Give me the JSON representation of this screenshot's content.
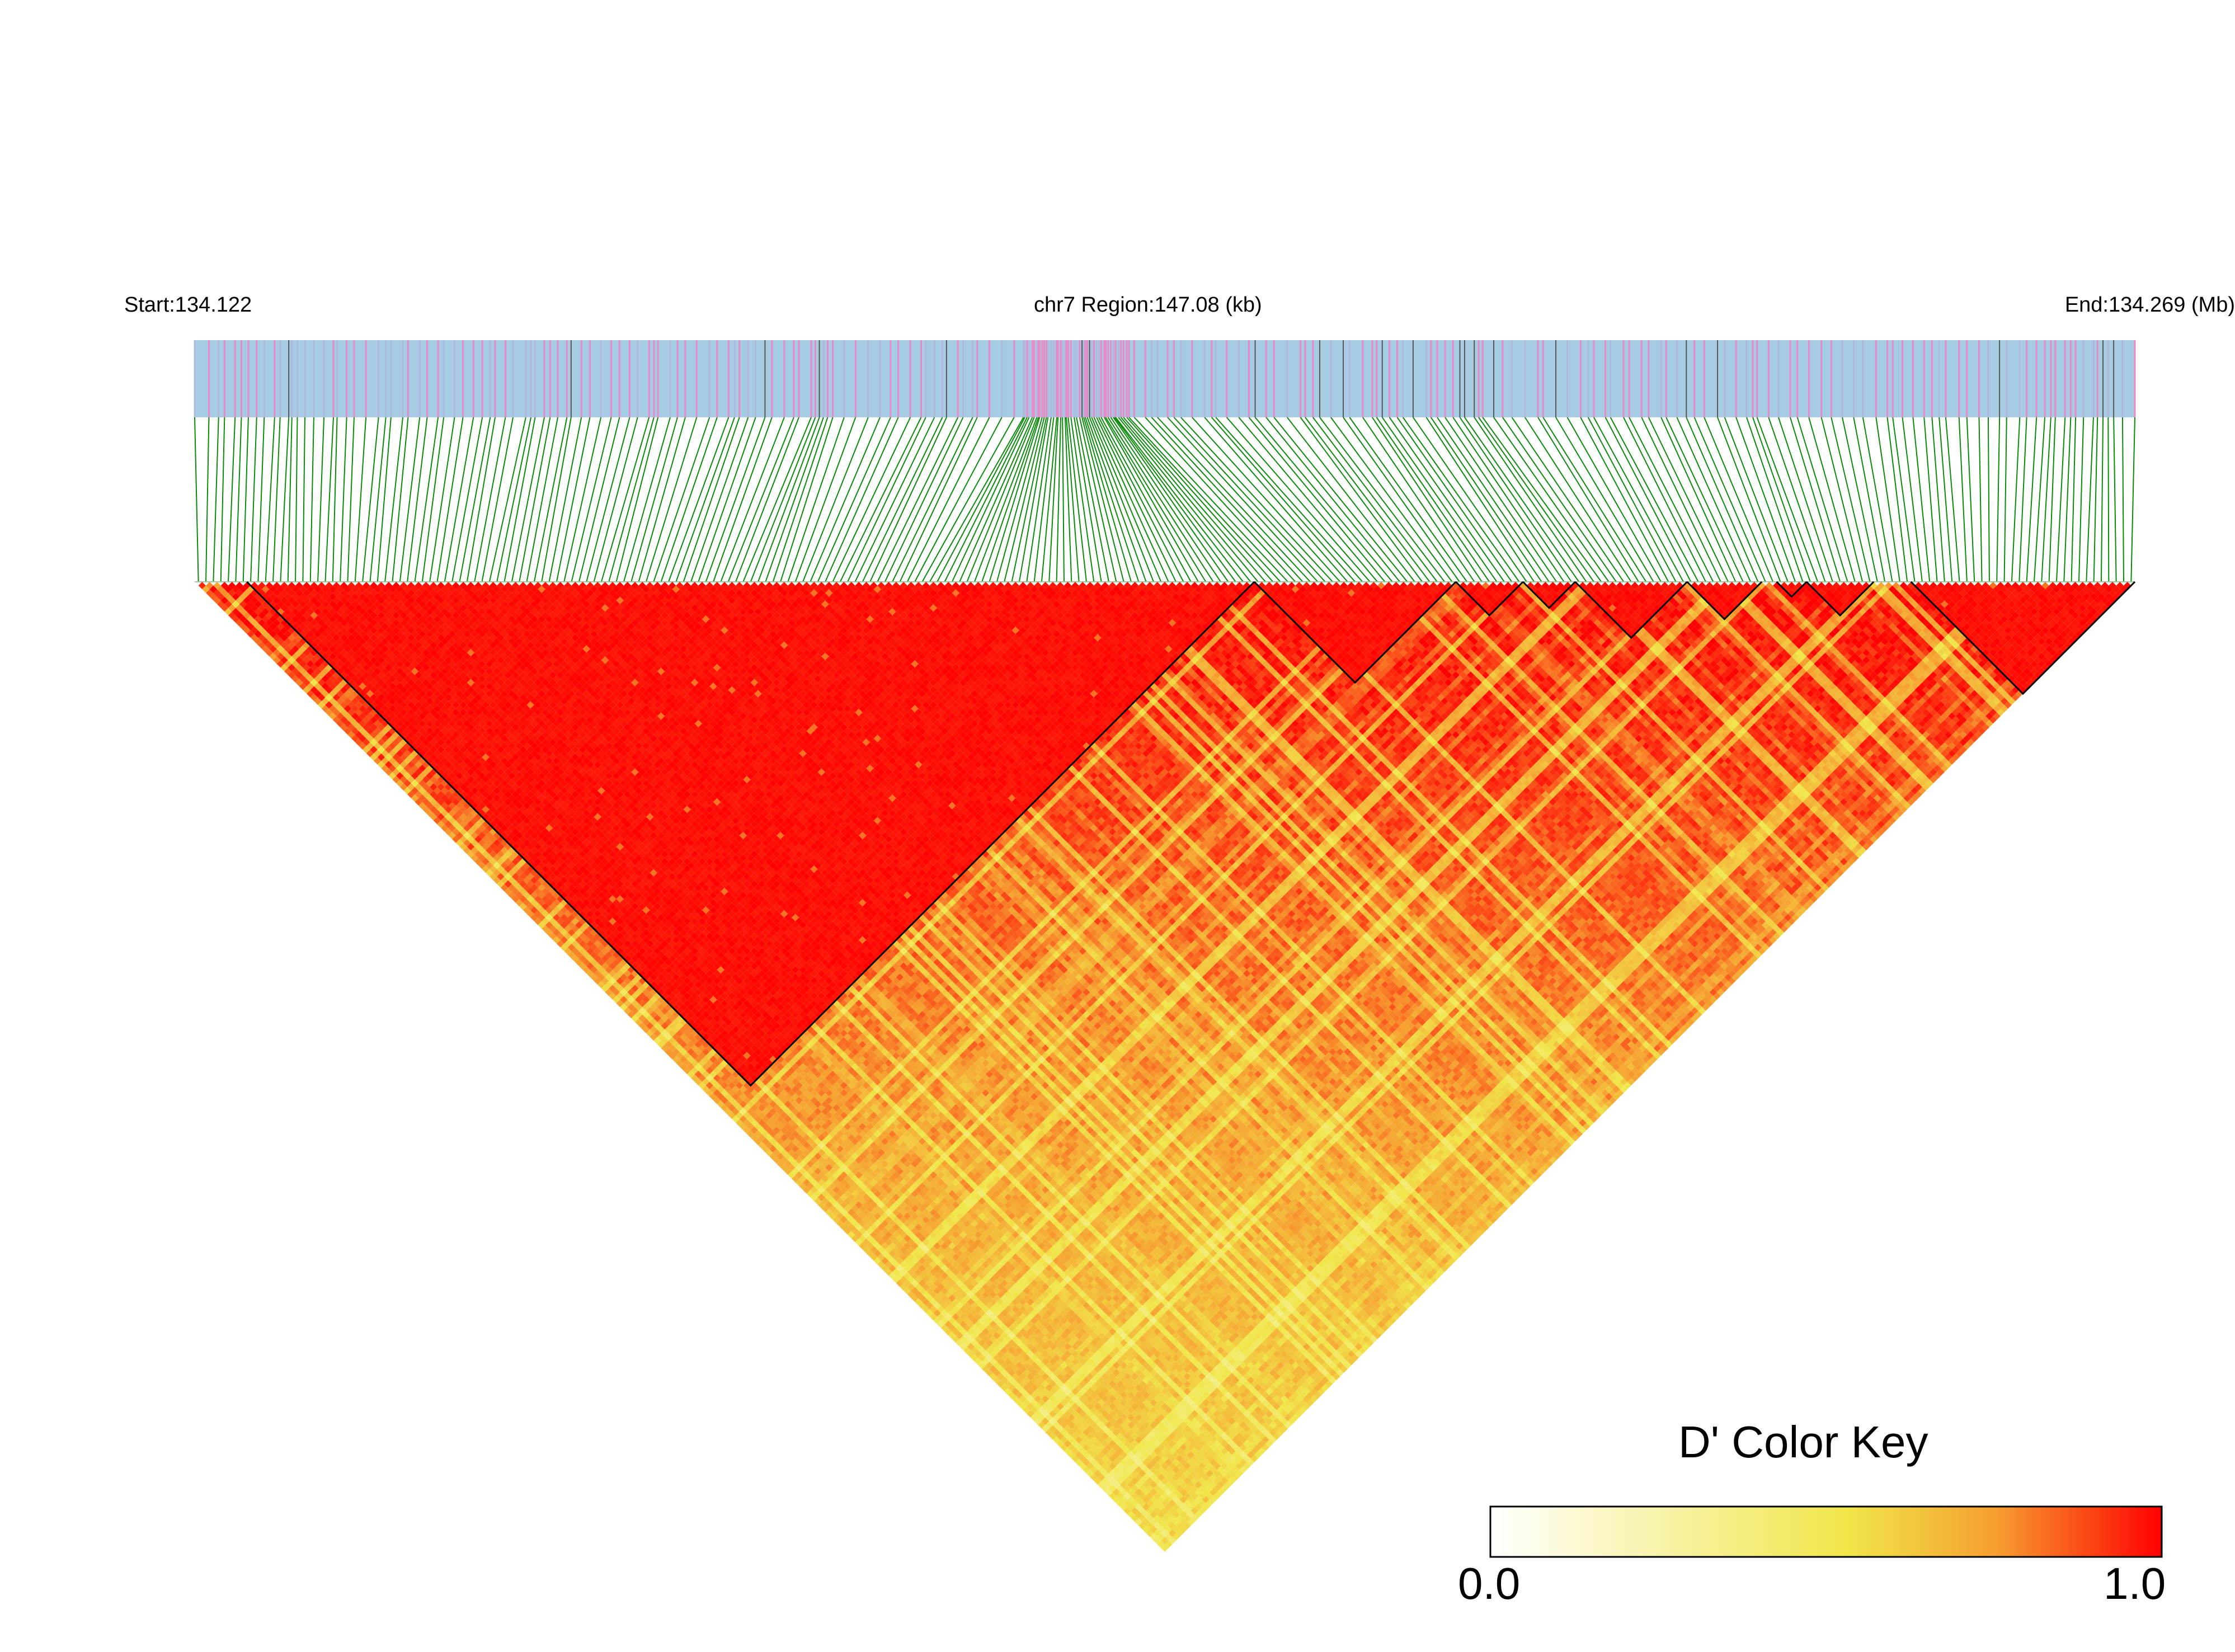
{
  "chart_data": {
    "type": "heatmap",
    "title": "",
    "region": {
      "start_label": "Start:134.122",
      "center_label": "chr7 Region:147.08 (kb)",
      "end_label": "End:134.269 (Mb)",
      "chromosome": "chr7",
      "start_mb": 134.122,
      "end_mb": 134.269,
      "length_kb": 147.08
    },
    "metric": "D'",
    "n_snps": 260,
    "ld_blocks": [
      {
        "from_snp": 7,
        "to_snp": 142
      },
      {
        "from_snp": 142,
        "to_snp": 169
      },
      {
        "from_snp": 169,
        "to_snp": 178
      },
      {
        "from_snp": 178,
        "to_snp": 185
      },
      {
        "from_snp": 185,
        "to_snp": 200
      },
      {
        "from_snp": 200,
        "to_snp": 210
      },
      {
        "from_snp": 212,
        "to_snp": 216
      },
      {
        "from_snp": 216,
        "to_snp": 225
      },
      {
        "from_snp": 230,
        "to_snp": 260
      }
    ],
    "color_key": {
      "title": "D' Color Key",
      "min_label": "0.0",
      "max_label": "1.0",
      "range": [
        0.0,
        1.0
      ],
      "colors": [
        "#ffffff",
        "#f5e84a",
        "#f6a030",
        "#ff0000"
      ]
    },
    "colors": {
      "snp_track_bg": "#a6cce3",
      "snp_track_mark": "#e889c8",
      "snp_track_dark": "#555555",
      "connector_lines": "#0a8a0a",
      "block_outline": "#000000",
      "high_ld": "#ff0000"
    }
  }
}
